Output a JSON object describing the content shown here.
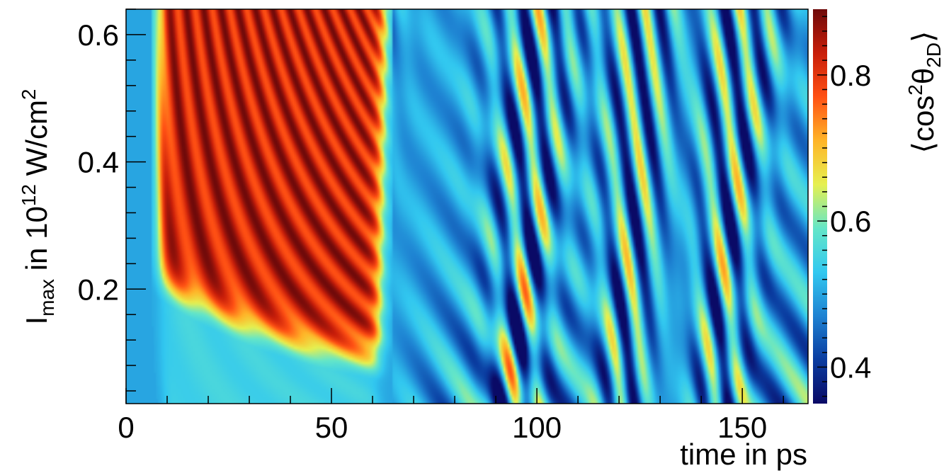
{
  "chart_data": {
    "type": "heatmap",
    "xlabel": "time in ps",
    "ylabel": {
      "main": "I",
      "sub": "max",
      "mid": " in 10",
      "sup": "12",
      "unit": " W/cm",
      "sup2": "2"
    },
    "zlabel": {
      "open": "⟨",
      "main": "cos",
      "sup": "2",
      "theta": "θ",
      "sub": "2D",
      "close": "⟩"
    },
    "xlim": [
      0,
      166
    ],
    "ylim": [
      0.02,
      0.64
    ],
    "zlim": [
      0.35,
      0.89
    ],
    "x_ticks": [
      {
        "value": 0,
        "label": "0"
      },
      {
        "value": 50,
        "label": "50"
      },
      {
        "value": 100,
        "label": "100"
      },
      {
        "value": 150,
        "label": "150"
      }
    ],
    "y_ticks": [
      {
        "value": 0.2,
        "label": "0.2"
      },
      {
        "value": 0.4,
        "label": "0.4"
      },
      {
        "value": 0.6,
        "label": "0.6"
      }
    ],
    "z_ticks": [
      {
        "value": 0.4,
        "label": "0.4"
      },
      {
        "value": 0.6,
        "label": "0.6"
      },
      {
        "value": 0.8,
        "label": "0.8"
      }
    ],
    "colormap": [
      "#0a0a66",
      "#0a3ca0",
      "#1e82d2",
      "#32c8f0",
      "#64e6c8",
      "#e6f050",
      "#ffb428",
      "#ff5014",
      "#c81e0a",
      "#6e0a0a"
    ],
    "aligned_region_end_ps": 63,
    "revival_times_ps": [
      48,
      95,
      121,
      144
    ]
  }
}
